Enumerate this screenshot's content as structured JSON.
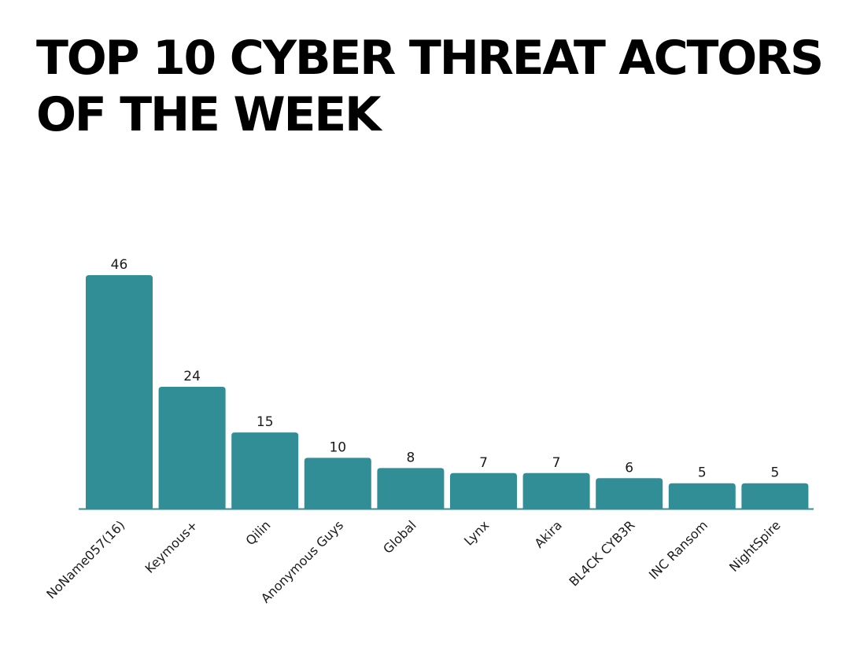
{
  "title": "TOP 10 CYBER THREAT ACTORS OF THE WEEK",
  "colors": {
    "bar": "#318d96",
    "axis": "#318d96",
    "text": "#1a1a1a"
  },
  "chart_data": {
    "type": "bar",
    "title": "TOP 10 CYBER THREAT ACTORS OF THE WEEK",
    "xlabel": "",
    "ylabel": "",
    "categories": [
      "NoName057(16)",
      "Keymous+",
      "Qilin",
      "Anonymous Guys",
      "Global",
      "Lynx",
      "Akira",
      "BL4CK CYB3R",
      "INC Ransom",
      "NightSpire"
    ],
    "values": [
      46,
      24,
      15,
      10,
      8,
      7,
      7,
      6,
      5,
      5
    ],
    "ylim": [
      0,
      46
    ],
    "grid": false,
    "legend": "none",
    "data_labels": true
  }
}
